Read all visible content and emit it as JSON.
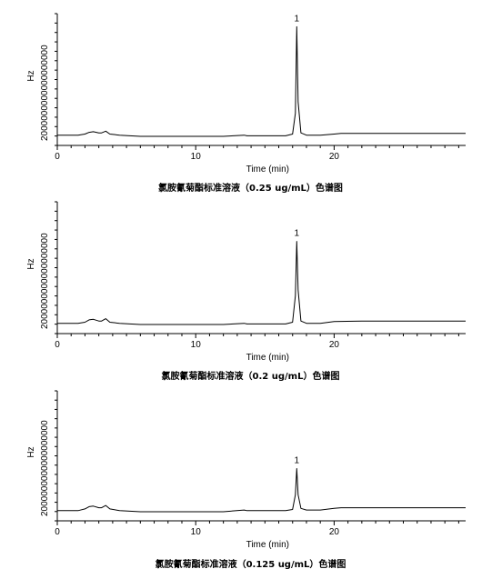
{
  "chart_data": [
    {
      "type": "line",
      "caption": "氯胺氰菊酯标准溶液（0.25 ug/mL）色谱图",
      "xlabel": "Time (min)",
      "ylabel": "Hz",
      "y_tick_text": "2000000000000000000",
      "xlim": [
        0,
        29.5
      ],
      "xticks": [
        0,
        10,
        20
      ],
      "peak": {
        "label": "1",
        "time": 17.3
      },
      "series": [
        {
          "x": [
            0,
            1.5,
            2.0,
            2.3,
            2.6,
            3.0,
            3.2,
            3.5,
            3.8,
            4.5,
            6,
            9,
            12,
            13.5,
            13.7,
            15,
            16.5,
            17.0,
            17.2,
            17.3,
            17.4,
            17.6,
            18.0,
            19,
            20,
            20.5,
            24,
            29.5
          ],
          "y": [
            0.01,
            0.01,
            0.02,
            0.035,
            0.04,
            0.03,
            0.03,
            0.045,
            0.02,
            0.01,
            0.0,
            0.0,
            0.0,
            0.01,
            0.005,
            0.005,
            0.005,
            0.02,
            0.2,
            0.95,
            0.3,
            0.03,
            0.01,
            0.01,
            0.02,
            0.025,
            0.025,
            0.025
          ]
        }
      ]
    },
    {
      "type": "line",
      "caption": "氯胺氰菊酯标准溶液（0.2 ug/mL）色谱图",
      "xlabel": "Time (min)",
      "ylabel": "Hz",
      "y_tick_text": "2000000000000000000",
      "xlim": [
        0,
        29.5
      ],
      "xticks": [
        0,
        10,
        20
      ],
      "peak": {
        "label": "1",
        "time": 17.3
      },
      "series": [
        {
          "x": [
            0,
            1.5,
            2.0,
            2.3,
            2.6,
            3.0,
            3.2,
            3.5,
            3.8,
            4.5,
            6,
            9,
            12,
            13.5,
            13.7,
            15,
            16.5,
            17.0,
            17.2,
            17.3,
            17.4,
            17.6,
            18.0,
            19,
            20,
            22,
            24,
            29.5
          ],
          "y": [
            0.01,
            0.01,
            0.02,
            0.04,
            0.045,
            0.03,
            0.03,
            0.05,
            0.02,
            0.01,
            0.0,
            0.0,
            0.0,
            0.01,
            0.005,
            0.005,
            0.005,
            0.02,
            0.25,
            0.72,
            0.3,
            0.03,
            0.01,
            0.01,
            0.025,
            0.03,
            0.03,
            0.03
          ]
        }
      ]
    },
    {
      "type": "line",
      "caption": "氯胺氰菊酯标准溶液（0.125 ug/mL）色谱图",
      "xlabel": "Time (min)",
      "ylabel": "Hz",
      "y_tick_text": "2000000000000000000",
      "xlim": [
        0,
        29.5
      ],
      "xticks": [
        0,
        10,
        20
      ],
      "peak": {
        "label": "1",
        "time": 17.3
      },
      "series": [
        {
          "x": [
            0,
            1.5,
            2.0,
            2.3,
            2.6,
            3.0,
            3.2,
            3.5,
            3.8,
            4.5,
            6,
            9,
            12,
            13.5,
            13.7,
            15,
            16.5,
            17.0,
            17.2,
            17.3,
            17.4,
            17.6,
            18.0,
            19,
            20,
            20.5,
            24,
            29.5
          ],
          "y": [
            0.01,
            0.01,
            0.025,
            0.045,
            0.05,
            0.035,
            0.035,
            0.055,
            0.025,
            0.01,
            0.0,
            0.0,
            0.0,
            0.015,
            0.01,
            0.01,
            0.01,
            0.02,
            0.15,
            0.38,
            0.15,
            0.03,
            0.015,
            0.015,
            0.03,
            0.035,
            0.035,
            0.035
          ]
        }
      ]
    }
  ]
}
